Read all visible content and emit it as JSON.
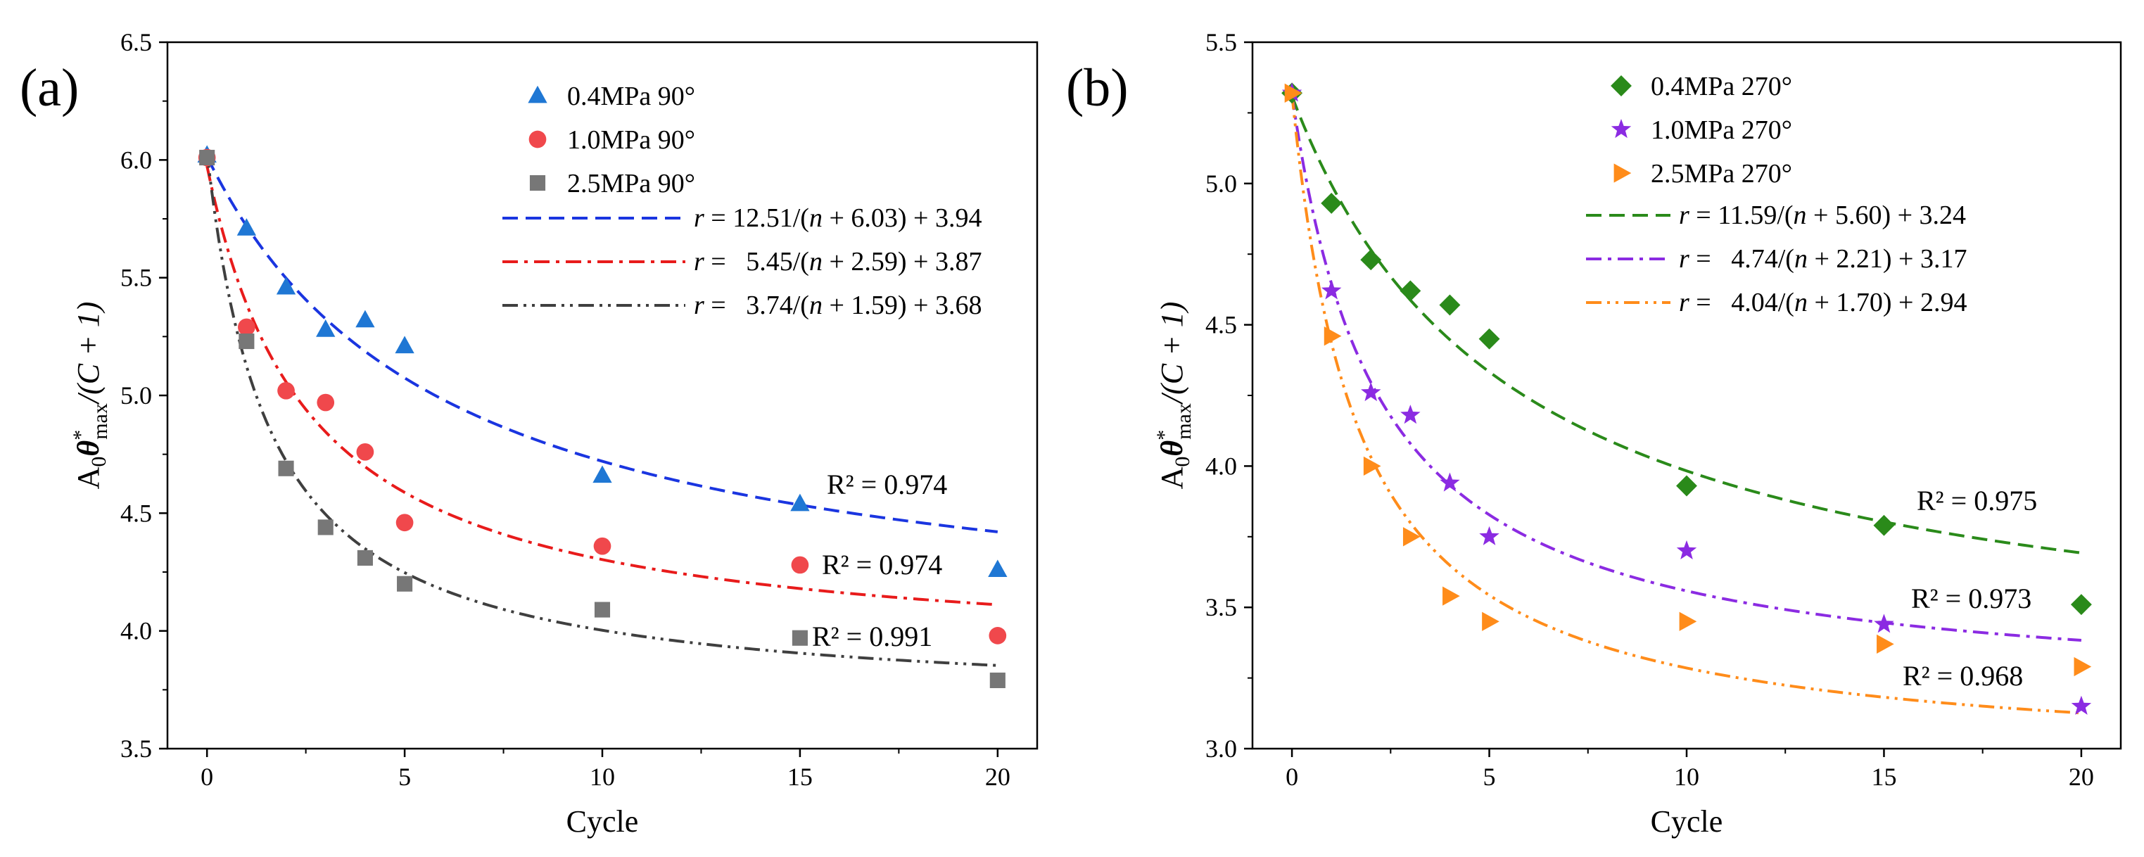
{
  "chart_data": [
    {
      "type": "scatter",
      "panel_label": "(a)",
      "xlabel": "Cycle",
      "ylabel_parts": {
        "base": "A",
        "sub0": "0",
        "theta": "θ",
        "star": "*",
        "sub_max": "max",
        "denom": "/(C + 1)"
      },
      "xlim": [
        -1,
        21
      ],
      "ylim": [
        3.5,
        6.5
      ],
      "xticks": [
        0,
        5,
        10,
        15,
        20
      ],
      "yticks": [
        3.5,
        4.0,
        4.5,
        5.0,
        5.5,
        6.0,
        6.5
      ],
      "xtick_labels": [
        "0",
        "5",
        "10",
        "15",
        "20"
      ],
      "ytick_labels": [
        "3.5",
        "4.0",
        "4.5",
        "5.0",
        "5.5",
        "6.0",
        "6.5"
      ],
      "legend_position": "top-right",
      "series": [
        {
          "name": "0.4MPa 90°",
          "marker": "triangle",
          "color": "#1f77d4",
          "x": [
            0,
            1,
            2,
            3,
            4,
            5,
            10,
            15,
            20
          ],
          "y": [
            6.02,
            5.71,
            5.46,
            5.28,
            5.32,
            5.21,
            4.66,
            4.54,
            4.26
          ],
          "fit": {
            "a": 12.51,
            "b": 6.03,
            "c": 3.94,
            "style": "dash",
            "color": "#1a35e0"
          },
          "equation": "r = 12.51/(n + 6.03) + 3.94",
          "r2": "R² = 0.974"
        },
        {
          "name": "1.0MPa 90°",
          "marker": "circle",
          "color": "#f0484c",
          "x": [
            0,
            1,
            2,
            3,
            4,
            5,
            10,
            15,
            20
          ],
          "y": [
            6.01,
            5.29,
            5.02,
            4.97,
            4.76,
            4.46,
            4.36,
            4.28,
            3.98
          ],
          "fit": {
            "a": 5.45,
            "b": 2.59,
            "c": 3.87,
            "style": "dashdot",
            "color": "#e81b1b"
          },
          "equation": "r =   5.45/(n + 2.59) + 3.87",
          "r2": "R² = 0.974"
        },
        {
          "name": "2.5MPa 90°",
          "marker": "square",
          "color": "#777777",
          "x": [
            0,
            1,
            2,
            3,
            4,
            5,
            10,
            15,
            20
          ],
          "y": [
            6.01,
            5.23,
            4.69,
            4.44,
            4.31,
            4.2,
            4.09,
            3.97,
            3.79
          ],
          "fit": {
            "a": 3.74,
            "b": 1.59,
            "c": 3.68,
            "style": "dashdotdot",
            "color": "#3f3f3f"
          },
          "equation": "r =   3.74/(n + 1.59) + 3.68",
          "r2": "R² = 0.991"
        }
      ]
    },
    {
      "type": "scatter",
      "panel_label": "(b)",
      "xlabel": "Cycle",
      "ylabel_parts": {
        "base": "A",
        "sub0": "0",
        "theta": "θ",
        "star": "*",
        "sub_max": "max",
        "denom": "/(C + 1)"
      },
      "xlim": [
        -1,
        21
      ],
      "ylim": [
        3.0,
        5.5
      ],
      "xticks": [
        0,
        5,
        10,
        15,
        20
      ],
      "yticks": [
        3.0,
        3.5,
        4.0,
        4.5,
        5.0,
        5.5
      ],
      "xtick_labels": [
        "0",
        "5",
        "10",
        "15",
        "20"
      ],
      "ytick_labels": [
        "3.0",
        "3.5",
        "4.0",
        "4.5",
        "5.0",
        "5.5"
      ],
      "legend_position": "top-right",
      "series": [
        {
          "name": "0.4MPa 270°",
          "marker": "diamond",
          "color": "#2a8a1a",
          "x": [
            0,
            1,
            2,
            3,
            4,
            5,
            10,
            15,
            20
          ],
          "y": [
            5.32,
            4.93,
            4.73,
            4.62,
            4.57,
            4.45,
            3.93,
            3.79,
            3.51
          ],
          "fit": {
            "a": 11.59,
            "b": 5.6,
            "c": 3.24,
            "style": "dash",
            "color": "#2a8a1a"
          },
          "equation": "r = 11.59/(n + 5.60) + 3.24",
          "r2": "R² = 0.975"
        },
        {
          "name": "1.0MPa 270°",
          "marker": "star",
          "color": "#8b2be2",
          "x": [
            0,
            1,
            2,
            3,
            4,
            5,
            10,
            15,
            20
          ],
          "y": [
            5.32,
            4.62,
            4.26,
            4.18,
            3.94,
            3.75,
            3.7,
            3.44,
            3.15
          ],
          "fit": {
            "a": 4.74,
            "b": 2.21,
            "c": 3.17,
            "style": "dashdot",
            "color": "#8b2be2"
          },
          "equation": "r =   4.74/(n + 2.21) + 3.17",
          "r2": "R² = 0.973"
        },
        {
          "name": "2.5MPa 270°",
          "marker": "triangle-right",
          "color": "#ff8c1a",
          "x": [
            0,
            1,
            2,
            3,
            4,
            5,
            10,
            15,
            20
          ],
          "y": [
            5.32,
            4.46,
            4.0,
            3.75,
            3.54,
            3.45,
            3.45,
            3.37,
            3.29
          ],
          "fit": {
            "a": 4.04,
            "b": 1.7,
            "c": 2.94,
            "style": "dashdotdot",
            "color": "#ff8c1a"
          },
          "equation": "r =   4.04/(n + 1.70) + 2.94",
          "r2": "R² = 0.968"
        }
      ]
    }
  ]
}
